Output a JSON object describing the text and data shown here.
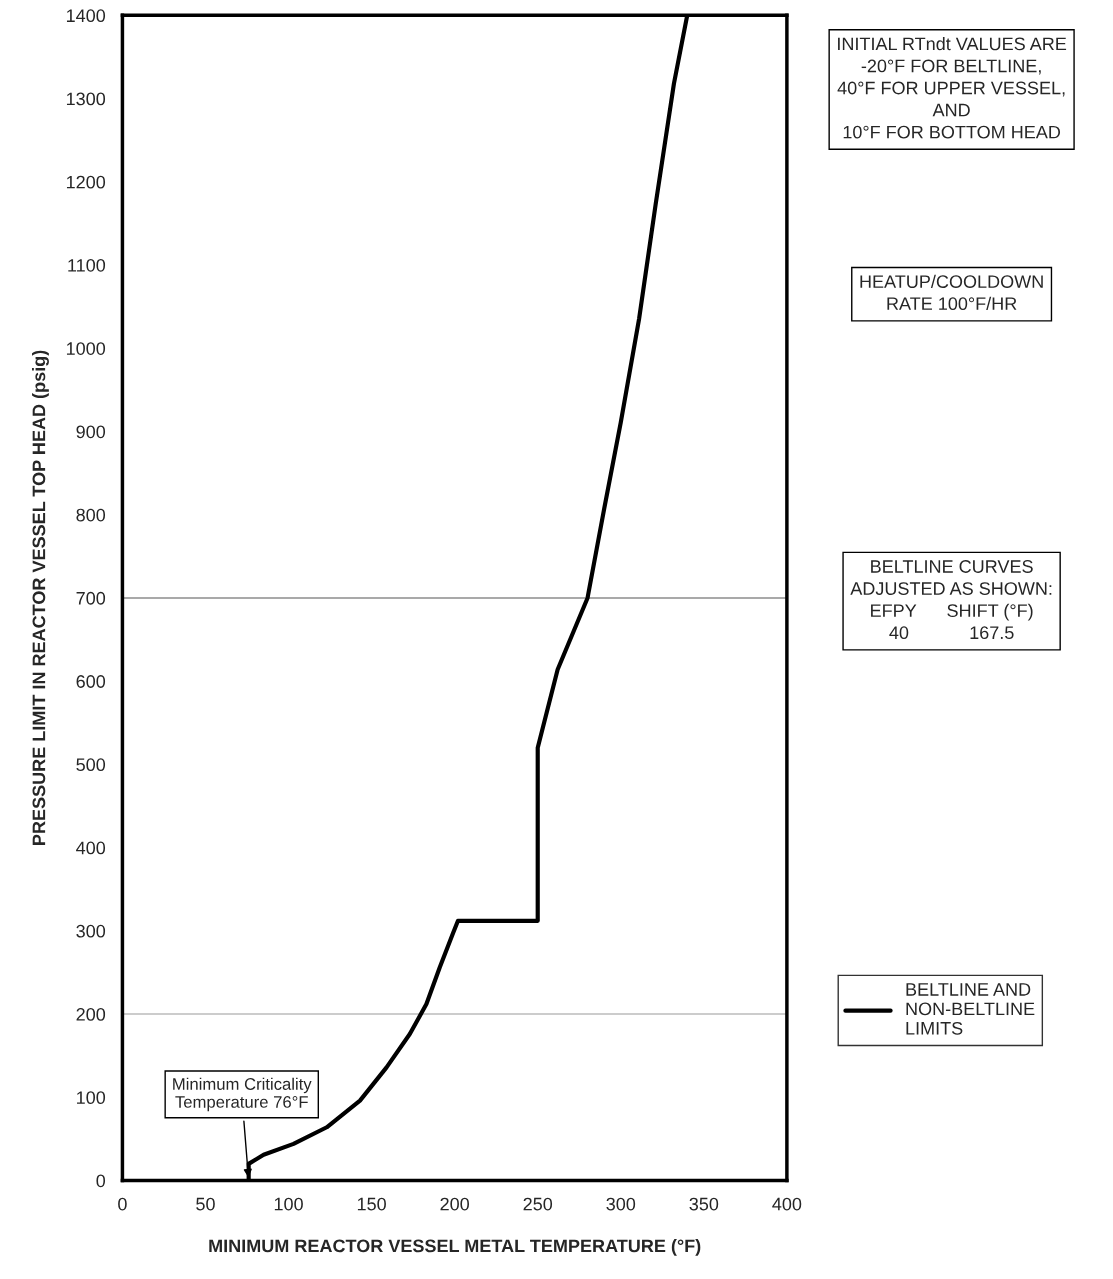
{
  "chart_data": {
    "type": "line",
    "xlabel": "MINIMUM REACTOR VESSEL METAL TEMPERATURE (°F)",
    "ylabel": "PRESSURE LIMIT IN REACTOR VESSEL TOP HEAD (psig)",
    "series": [
      {
        "name": "BELTLINE AND\nNON-BELTLINE\nLIMITS",
        "color": "#000000",
        "x": [
          76,
          76,
          85,
          103,
          123,
          143,
          159,
          173,
          183,
          191,
          199,
          202,
          250,
          250,
          262,
          280,
          290,
          300,
          311,
          321,
          332,
          340
        ],
        "values": [
          0,
          20,
          31,
          44,
          64,
          96,
          136,
          176,
          212,
          256,
          297,
          312,
          312,
          520,
          614,
          700,
          807,
          911,
          1035,
          1173,
          1318,
          1400
        ]
      }
    ],
    "xlim": [
      0,
      400
    ],
    "xticks": [
      0,
      50,
      100,
      150,
      200,
      250,
      300,
      350,
      400
    ],
    "ylim": [
      0,
      1400
    ],
    "yticks": [
      0,
      100,
      200,
      300,
      400,
      500,
      600,
      700,
      800,
      900,
      1000,
      1100,
      1200,
      1300,
      1400
    ],
    "ref_lines": [
      {
        "axis": "y",
        "value": 200,
        "color": "#999999"
      },
      {
        "axis": "y",
        "value": 700,
        "color": "#555555"
      }
    ],
    "grid": false,
    "legend": "right",
    "marker": "none",
    "line_style": "solid",
    "annotations": [
      {
        "text": "Minimum Criticality\nTemperature 76°F",
        "x": 76,
        "y": 0
      },
      "INITIAL RTndt VALUES ARE\n-20°F FOR BELTLINE,\n40°F FOR UPPER VESSEL,\nAND\n10°F FOR BOTTOM HEAD",
      "HEATUP/COOLDOWN\nRATE 100°F/HR",
      "BELTLINE CURVES\nADJUSTED AS SHOWN:\nEFPY      SHIFT (°F)\n40            167.5"
    ]
  }
}
